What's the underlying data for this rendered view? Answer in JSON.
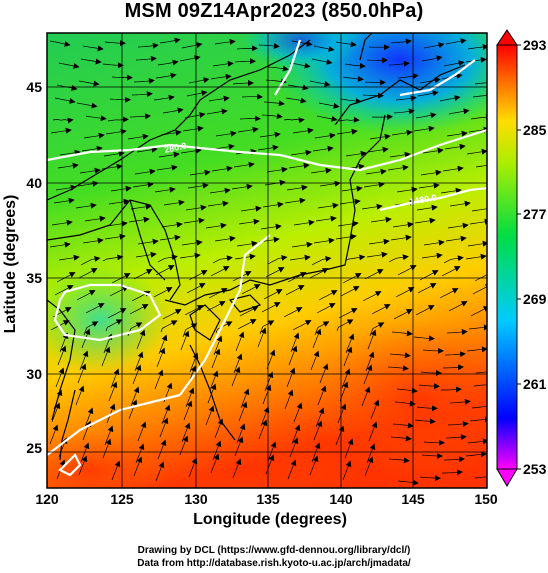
{
  "title": "MSM 09Z14Apr2023 (850.0hPa)",
  "axes": {
    "xlabel": "Longitude (degrees)",
    "ylabel": "Latitude  (degrees)",
    "xticks": [
      "120",
      "125",
      "130",
      "135",
      "140",
      "145",
      "150"
    ],
    "yticks": [
      "25",
      "30",
      "35",
      "40",
      "45"
    ],
    "xlim": [
      120,
      150
    ],
    "ylim": [
      22.4,
      47.6
    ]
  },
  "colorbar": {
    "ticks": [
      "293",
      "285",
      "277",
      "269",
      "261",
      "253"
    ],
    "range": [
      253,
      293
    ],
    "colors": [
      "#ff00ff",
      "#0000ff",
      "#00ccff",
      "#00dd44",
      "#aaee00",
      "#ffdd00",
      "#ff6600",
      "#ff0000"
    ]
  },
  "contours": [
    {
      "label": "280.0",
      "color": "#ffffff"
    },
    {
      "label": "1480.0",
      "color": "#ffffff"
    }
  ],
  "credits": {
    "line1": "Drawing by DCL (https://www.gfd-dennou.org/library/dcl/)",
    "line2": "Data from http://database.rish.kyoto-u.ac.jp/arch/jmadata/"
  }
}
